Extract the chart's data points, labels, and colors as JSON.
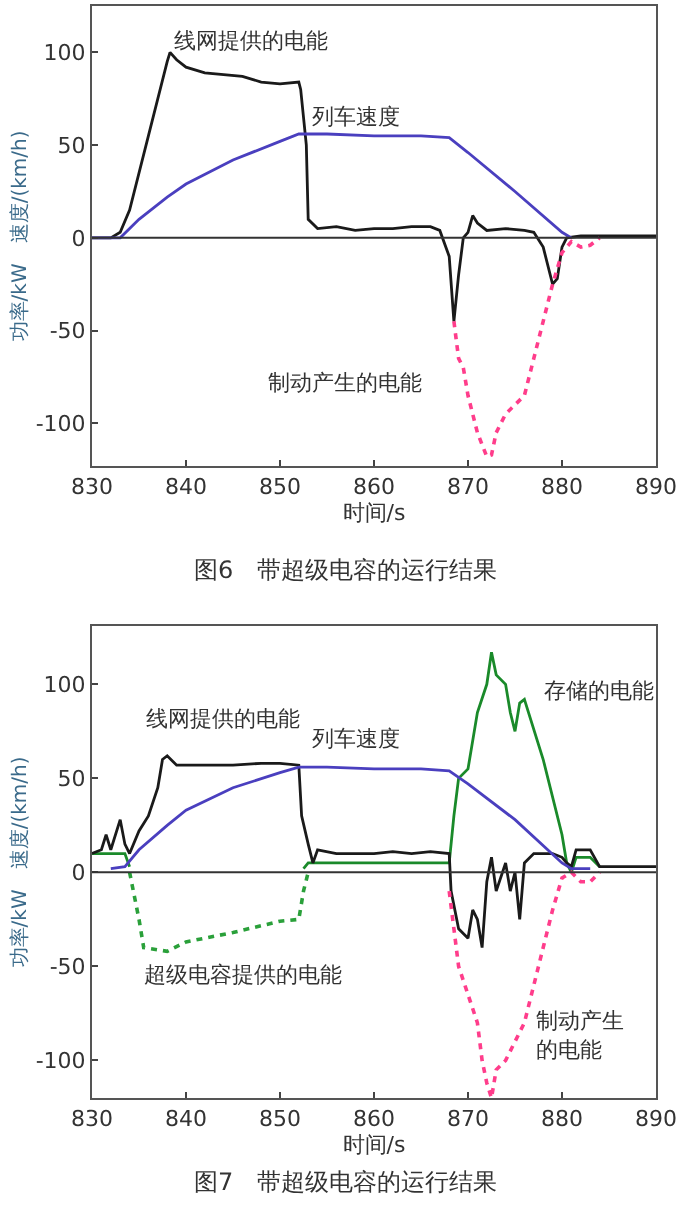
{
  "chart_data": [
    {
      "type": "line",
      "title": "图6　带超级电容的运行结果",
      "xlabel": "时间/s",
      "ylabel": "功率/kW　速度/(km/h)",
      "xlim": [
        830,
        890
      ],
      "xticks": [
        830,
        840,
        850,
        860,
        870,
        880,
        890
      ],
      "ylim": [
        -123,
        125
      ],
      "yticks": [
        -100,
        -50,
        0,
        50,
        100
      ],
      "ref_lines": [
        {
          "axis": "y",
          "value": 0,
          "color": "#333333"
        }
      ],
      "series": [
        {
          "name": "线网提供的电能",
          "color": "#1a1a1a",
          "line_style": "solid",
          "x": [
            830,
            832,
            833,
            834,
            836,
            838,
            838.3,
            839,
            840,
            842,
            844,
            846,
            848,
            850,
            852,
            852.2,
            852.8,
            853,
            854,
            856,
            858,
            860,
            862,
            864,
            866,
            867,
            868,
            868.5,
            869,
            869.5,
            870,
            870.5,
            871,
            872,
            874,
            876,
            877,
            878,
            879,
            879.5,
            880,
            880.5,
            882,
            885,
            890
          ],
          "values": [
            0,
            0,
            3,
            15,
            55,
            95,
            100,
            96,
            92,
            89,
            88,
            87,
            84,
            83,
            84,
            80,
            50,
            10,
            5,
            6,
            4,
            5,
            5,
            6,
            6,
            4,
            -10,
            -45,
            -20,
            0,
            3,
            12,
            8,
            4,
            5,
            4,
            3,
            -5,
            -25,
            -22,
            -5,
            0,
            1,
            1,
            1
          ]
        },
        {
          "name": "列车速度",
          "color": "#4a3fbf",
          "line_style": "solid",
          "x": [
            830,
            833,
            835,
            838,
            840,
            845,
            850,
            852,
            855,
            860,
            865,
            868,
            870,
            875,
            880,
            881
          ],
          "values": [
            0,
            0,
            10,
            22,
            29,
            42,
            52,
            56,
            56,
            55,
            55,
            54,
            46,
            25,
            3,
            0
          ]
        },
        {
          "name": "制动产生的电能",
          "color": "#ff3d8b",
          "line_style": "dotted",
          "x": [
            868.5,
            869,
            869.5,
            870,
            871,
            872,
            872.5,
            873,
            874,
            875,
            876,
            877,
            878,
            879,
            880,
            881,
            882,
            883,
            884
          ],
          "values": [
            -45,
            -65,
            -70,
            -85,
            -105,
            -118,
            -117,
            -105,
            -95,
            -90,
            -85,
            -65,
            -45,
            -25,
            -8,
            -2,
            -5,
            -4,
            0
          ]
        }
      ]
    },
    {
      "type": "line",
      "title": "图7　带超级电容的运行结果",
      "xlabel": "时间/s",
      "ylabel": "功率/kW　速度/(km/h)",
      "xlim": [
        830,
        890
      ],
      "xticks": [
        830,
        840,
        850,
        860,
        870,
        880,
        890
      ],
      "ylim": [
        -120,
        131
      ],
      "yticks": [
        -100,
        -50,
        0,
        50,
        100
      ],
      "ref_lines": [
        {
          "axis": "y",
          "value": 0,
          "color": "#333333"
        }
      ],
      "series": [
        {
          "name": "存储的电能",
          "color": "#1a8a2a",
          "line_style": "solid",
          "x": [
            830,
            833.5,
            834,
            843,
            852.5,
            853,
            860,
            868,
            868.5,
            869,
            870,
            871,
            872,
            872.5,
            873,
            874,
            874.5,
            875,
            875.5,
            876,
            878,
            880,
            880.5,
            881,
            881.5,
            883,
            884
          ],
          "values": [
            10,
            10,
            3,
            null,
            2,
            5,
            5,
            5,
            30,
            50,
            55,
            85,
            100,
            117,
            105,
            100,
            85,
            75,
            90,
            92,
            60,
            20,
            5,
            0,
            8,
            8,
            3
          ]
        },
        {
          "name": "超级电容提供的电能",
          "color": "#2aa03a",
          "line_style": "dotted",
          "x": [
            834,
            835,
            835.5,
            838,
            840,
            845,
            850,
            852,
            852.5,
            853
          ],
          "values": [
            0,
            -25,
            -40,
            -42,
            -37,
            -32,
            -26,
            -25,
            -10,
            0
          ]
        },
        {
          "name": "线网提供的电能",
          "color": "#1a1a1a",
          "line_style": "solid",
          "x": [
            830,
            831,
            831.5,
            832,
            833,
            833.5,
            834,
            835,
            836,
            837,
            837.5,
            838,
            839,
            842,
            845,
            848,
            850,
            852,
            852.3,
            853,
            853.5,
            854,
            856,
            858,
            860,
            862,
            864,
            866,
            868,
            868.2,
            869,
            870,
            870.5,
            871,
            871.5,
            872,
            872.5,
            873,
            874,
            874.5,
            875,
            875.5,
            876,
            877,
            879,
            880,
            880.5,
            881,
            881.5,
            883,
            884,
            887,
            890
          ],
          "values": [
            10,
            12,
            20,
            12,
            28,
            15,
            10,
            22,
            30,
            45,
            60,
            62,
            57,
            57,
            57,
            58,
            58,
            57,
            30,
            15,
            5,
            12,
            10,
            10,
            10,
            11,
            10,
            11,
            10,
            -10,
            -30,
            -35,
            -20,
            -25,
            -40,
            -5,
            8,
            -10,
            5,
            -10,
            0,
            -25,
            5,
            10,
            10,
            8,
            5,
            3,
            12,
            12,
            3,
            3,
            3
          ]
        },
        {
          "name": "列车速度",
          "color": "#4a3fbf",
          "line_style": "solid",
          "x": [
            832,
            833.5,
            835,
            838,
            840,
            845,
            850,
            852,
            855,
            860,
            865,
            868,
            870,
            875,
            880,
            881,
            883
          ],
          "values": [
            2,
            3,
            12,
            25,
            33,
            45,
            53,
            56,
            56,
            55,
            55,
            54,
            47,
            28,
            5,
            2,
            2
          ]
        },
        {
          "name": "制动产生的电能",
          "color": "#ff3d8b",
          "line_style": "dotted",
          "x": [
            868,
            869,
            870,
            871,
            871.5,
            872,
            872.5,
            873,
            874,
            875,
            876,
            877,
            878,
            879,
            880,
            881,
            882,
            883,
            884
          ],
          "values": [
            -10,
            -50,
            -65,
            -80,
            -100,
            -112,
            -120,
            -105,
            -100,
            -90,
            -80,
            -60,
            -40,
            -20,
            -3,
            0,
            -5,
            -5,
            0
          ]
        }
      ]
    }
  ]
}
